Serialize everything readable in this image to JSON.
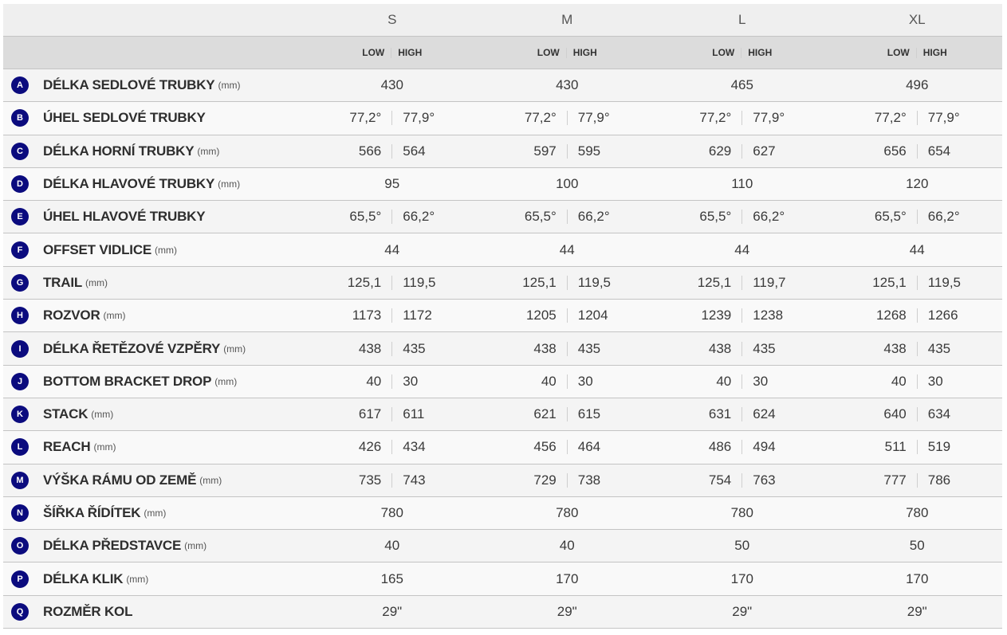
{
  "sizes": [
    "S",
    "M",
    "L",
    "XL"
  ],
  "subheader": {
    "low": "LOW",
    "high": "HIGH"
  },
  "badge_color": "#0b0b7e",
  "rows": [
    {
      "letter": "A",
      "name": "DÉLKA SEDLOVÉ TRUBKY",
      "unit": "(mm)",
      "values": [
        "430",
        "430",
        "465",
        "496"
      ]
    },
    {
      "letter": "B",
      "name": "ÚHEL SEDLOVÉ TRUBKY",
      "unit": "",
      "values": [
        [
          "77,2°",
          "77,9°"
        ],
        [
          "77,2°",
          "77,9°"
        ],
        [
          "77,2°",
          "77,9°"
        ],
        [
          "77,2°",
          "77,9°"
        ]
      ]
    },
    {
      "letter": "C",
      "name": "DÉLKA HORNÍ TRUBKY",
      "unit": "(mm)",
      "values": [
        [
          "566",
          "564"
        ],
        [
          "597",
          "595"
        ],
        [
          "629",
          "627"
        ],
        [
          "656",
          "654"
        ]
      ]
    },
    {
      "letter": "D",
      "name": "DÉLKA HLAVOVÉ TRUBKY",
      "unit": "(mm)",
      "values": [
        "95",
        "100",
        "110",
        "120"
      ]
    },
    {
      "letter": "E",
      "name": "ÚHEL HLAVOVÉ TRUBKY",
      "unit": "",
      "values": [
        [
          "65,5°",
          "66,2°"
        ],
        [
          "65,5°",
          "66,2°"
        ],
        [
          "65,5°",
          "66,2°"
        ],
        [
          "65,5°",
          "66,2°"
        ]
      ]
    },
    {
      "letter": "F",
      "name": "OFFSET VIDLICE",
      "unit": "(mm)",
      "values": [
        "44",
        "44",
        "44",
        "44"
      ]
    },
    {
      "letter": "G",
      "name": "TRAIL",
      "unit": "(mm)",
      "values": [
        [
          "125,1",
          "119,5"
        ],
        [
          "125,1",
          "119,5"
        ],
        [
          "125,1",
          "119,7"
        ],
        [
          "125,1",
          "119,5"
        ]
      ]
    },
    {
      "letter": "H",
      "name": "ROZVOR",
      "unit": "(mm)",
      "values": [
        [
          "1173",
          "1172"
        ],
        [
          "1205",
          "1204"
        ],
        [
          "1239",
          "1238"
        ],
        [
          "1268",
          "1266"
        ]
      ]
    },
    {
      "letter": "I",
      "name": "DÉLKA ŘETĚZOVÉ VZPĚRY",
      "unit": "(mm)",
      "values": [
        [
          "438",
          "435"
        ],
        [
          "438",
          "435"
        ],
        [
          "438",
          "435"
        ],
        [
          "438",
          "435"
        ]
      ]
    },
    {
      "letter": "J",
      "name": "BOTTOM BRACKET DROP",
      "unit": "(mm)",
      "values": [
        [
          "40",
          "30"
        ],
        [
          "40",
          "30"
        ],
        [
          "40",
          "30"
        ],
        [
          "40",
          "30"
        ]
      ]
    },
    {
      "letter": "K",
      "name": "STACK",
      "unit": "(mm)",
      "values": [
        [
          "617",
          "611"
        ],
        [
          "621",
          "615"
        ],
        [
          "631",
          "624"
        ],
        [
          "640",
          "634"
        ]
      ]
    },
    {
      "letter": "L",
      "name": "REACH",
      "unit": "(mm)",
      "values": [
        [
          "426",
          "434"
        ],
        [
          "456",
          "464"
        ],
        [
          "486",
          "494"
        ],
        [
          "511",
          "519"
        ]
      ]
    },
    {
      "letter": "M",
      "name": "VÝŠKA RÁMU OD ZEMĚ",
      "unit": "(mm)",
      "values": [
        [
          "735",
          "743"
        ],
        [
          "729",
          "738"
        ],
        [
          "754",
          "763"
        ],
        [
          "777",
          "786"
        ]
      ]
    },
    {
      "letter": "N",
      "name": "ŠÍŘKA ŘÍDÍTEK",
      "unit": "(mm)",
      "values": [
        "780",
        "780",
        "780",
        "780"
      ]
    },
    {
      "letter": "O",
      "name": "DÉLKA PŘEDSTAVCE",
      "unit": "(mm)",
      "values": [
        "40",
        "40",
        "50",
        "50"
      ]
    },
    {
      "letter": "P",
      "name": "DÉLKA KLIK",
      "unit": "(mm)",
      "values": [
        "165",
        "170",
        "170",
        "170"
      ]
    },
    {
      "letter": "Q",
      "name": "ROZMĚR KOL",
      "unit": "",
      "values": [
        "29\"",
        "29\"",
        "29\"",
        "29\""
      ]
    }
  ]
}
